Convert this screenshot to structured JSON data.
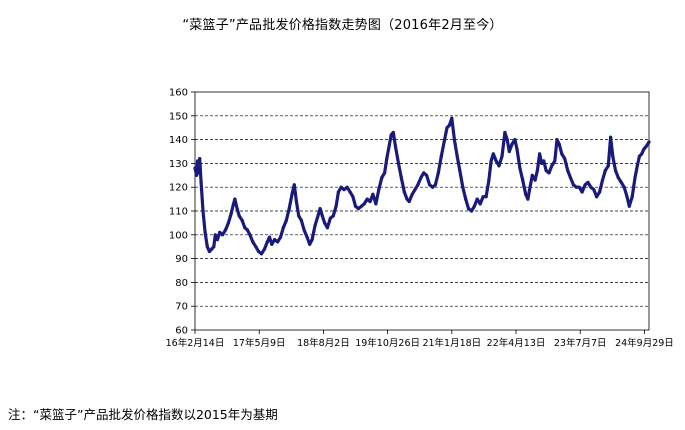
{
  "chart_data": {
    "type": "line",
    "title": "“菜篮子”产品批发价格指数走势图（2016年2月至今）",
    "footnote": "注：“菜篮子”产品批发价格指数以2015年为基期",
    "xlabel": "",
    "ylabel": "",
    "ylim": [
      60,
      160
    ],
    "yticks": [
      "60",
      "70",
      "80",
      "90",
      "100",
      "110",
      "120",
      "130",
      "140",
      "150",
      "160"
    ],
    "xticks": [
      "16年2月14日",
      "17年5月9日",
      "18年8月2日",
      "19年10月26日",
      "21年1月18日",
      "22年4月13日",
      "23年7月7日",
      "24年9月29日"
    ],
    "x_range": [
      "2016-02-14",
      "2024-10-31"
    ],
    "grid": "horizontal dashed",
    "line_color": "#1a1a7a",
    "series": [
      {
        "name": "",
        "points": [
          [
            "2016-02-14",
            128
          ],
          [
            "2016-02-25",
            125
          ],
          [
            "2016-03-03",
            131
          ],
          [
            "2016-03-10",
            126
          ],
          [
            "2016-03-18",
            132
          ],
          [
            "2016-03-28",
            122
          ],
          [
            "2016-04-10",
            110
          ],
          [
            "2016-04-25",
            101
          ],
          [
            "2016-05-10",
            95
          ],
          [
            "2016-05-25",
            93
          ],
          [
            "2016-06-10",
            94
          ],
          [
            "2016-06-25",
            95
          ],
          [
            "2016-07-05",
            100
          ],
          [
            "2016-07-20",
            98
          ],
          [
            "2016-08-05",
            101
          ],
          [
            "2016-08-25",
            100
          ],
          [
            "2016-09-15",
            102
          ],
          [
            "2016-10-05",
            105
          ],
          [
            "2016-10-25",
            109
          ],
          [
            "2016-11-10",
            113
          ],
          [
            "2016-11-20",
            115
          ],
          [
            "2016-12-05",
            111
          ],
          [
            "2016-12-20",
            108
          ],
          [
            "2017-01-10",
            106
          ],
          [
            "2017-01-28",
            103
          ],
          [
            "2017-02-15",
            102
          ],
          [
            "2017-03-05",
            100
          ],
          [
            "2017-03-25",
            97
          ],
          [
            "2017-04-15",
            95
          ],
          [
            "2017-05-05",
            93
          ],
          [
            "2017-05-25",
            92
          ],
          [
            "2017-06-15",
            94
          ],
          [
            "2017-07-05",
            97
          ],
          [
            "2017-07-20",
            99
          ],
          [
            "2017-08-05",
            96
          ],
          [
            "2017-08-25",
            98
          ],
          [
            "2017-09-15",
            97
          ],
          [
            "2017-10-05",
            99
          ],
          [
            "2017-10-25",
            103
          ],
          [
            "2017-11-15",
            106
          ],
          [
            "2017-12-05",
            111
          ],
          [
            "2017-12-25",
            117
          ],
          [
            "2018-01-10",
            121
          ],
          [
            "2018-01-25",
            114
          ],
          [
            "2018-02-10",
            108
          ],
          [
            "2018-03-01",
            106
          ],
          [
            "2018-03-20",
            102
          ],
          [
            "2018-04-10",
            99
          ],
          [
            "2018-04-28",
            96
          ],
          [
            "2018-05-15",
            98
          ],
          [
            "2018-06-05",
            104
          ],
          [
            "2018-06-25",
            108
          ],
          [
            "2018-07-10",
            111
          ],
          [
            "2018-07-25",
            108
          ],
          [
            "2018-08-10",
            105
          ],
          [
            "2018-08-30",
            103
          ],
          [
            "2018-09-20",
            107
          ],
          [
            "2018-10-10",
            108
          ],
          [
            "2018-10-30",
            112
          ],
          [
            "2018-11-15",
            118
          ],
          [
            "2018-12-05",
            120
          ],
          [
            "2018-12-25",
            119
          ],
          [
            "2019-01-15",
            120
          ],
          [
            "2019-02-05",
            118
          ],
          [
            "2019-02-25",
            116
          ],
          [
            "2019-03-15",
            112
          ],
          [
            "2019-04-05",
            111
          ],
          [
            "2019-04-25",
            112
          ],
          [
            "2019-05-15",
            113
          ],
          [
            "2019-06-05",
            115
          ],
          [
            "2019-06-25",
            114
          ],
          [
            "2019-07-15",
            117
          ],
          [
            "2019-08-05",
            113
          ],
          [
            "2019-08-25",
            119
          ],
          [
            "2019-09-15",
            124
          ],
          [
            "2019-10-05",
            126
          ],
          [
            "2019-10-20",
            132
          ],
          [
            "2019-11-05",
            137
          ],
          [
            "2019-11-20",
            142
          ],
          [
            "2019-12-05",
            143
          ],
          [
            "2019-12-20",
            137
          ],
          [
            "2020-01-10",
            130
          ],
          [
            "2020-01-30",
            124
          ],
          [
            "2020-02-20",
            118
          ],
          [
            "2020-03-10",
            115
          ],
          [
            "2020-03-25",
            114
          ],
          [
            "2020-04-15",
            117
          ],
          [
            "2020-05-05",
            119
          ],
          [
            "2020-05-25",
            121
          ],
          [
            "2020-06-15",
            124
          ],
          [
            "2020-07-05",
            126
          ],
          [
            "2020-07-25",
            125
          ],
          [
            "2020-08-15",
            121
          ],
          [
            "2020-09-05",
            120
          ],
          [
            "2020-09-25",
            121
          ],
          [
            "2020-10-15",
            126
          ],
          [
            "2020-11-05",
            133
          ],
          [
            "2020-11-25",
            139
          ],
          [
            "2020-12-15",
            145
          ],
          [
            "2021-01-01",
            146
          ],
          [
            "2021-01-18",
            149
          ],
          [
            "2021-02-05",
            140
          ],
          [
            "2021-02-25",
            133
          ],
          [
            "2021-03-15",
            127
          ],
          [
            "2021-04-05",
            120
          ],
          [
            "2021-04-25",
            115
          ],
          [
            "2021-05-15",
            111
          ],
          [
            "2021-06-05",
            110
          ],
          [
            "2021-06-25",
            112
          ],
          [
            "2021-07-15",
            115
          ],
          [
            "2021-08-05",
            113
          ],
          [
            "2021-08-25",
            116
          ],
          [
            "2021-09-15",
            116
          ],
          [
            "2021-10-05",
            123
          ],
          [
            "2021-10-20",
            131
          ],
          [
            "2021-11-05",
            134
          ],
          [
            "2021-11-25",
            131
          ],
          [
            "2021-12-15",
            129
          ],
          [
            "2022-01-05",
            133
          ],
          [
            "2022-01-25",
            143
          ],
          [
            "2022-02-10",
            140
          ],
          [
            "2022-02-25",
            135
          ],
          [
            "2022-03-15",
            138
          ],
          [
            "2022-04-05",
            140
          ],
          [
            "2022-04-20",
            136
          ],
          [
            "2022-05-10",
            128
          ],
          [
            "2022-05-30",
            123
          ],
          [
            "2022-06-20",
            117
          ],
          [
            "2022-07-05",
            115
          ],
          [
            "2022-07-20",
            120
          ],
          [
            "2022-08-05",
            125
          ],
          [
            "2022-08-25",
            123
          ],
          [
            "2022-09-10",
            127
          ],
          [
            "2022-09-25",
            134
          ],
          [
            "2022-10-10",
            130
          ],
          [
            "2022-10-25",
            131
          ],
          [
            "2022-11-10",
            127
          ],
          [
            "2022-11-30",
            126
          ],
          [
            "2022-12-20",
            129
          ],
          [
            "2023-01-10",
            131
          ],
          [
            "2023-01-25",
            140
          ],
          [
            "2023-02-10",
            138
          ],
          [
            "2023-02-28",
            134
          ],
          [
            "2023-03-20",
            132
          ],
          [
            "2023-04-10",
            127
          ],
          [
            "2023-04-30",
            124
          ],
          [
            "2023-05-20",
            121
          ],
          [
            "2023-06-10",
            120
          ],
          [
            "2023-06-30",
            120
          ],
          [
            "2023-07-20",
            118
          ],
          [
            "2023-08-10",
            121
          ],
          [
            "2023-08-30",
            122
          ],
          [
            "2023-09-20",
            120
          ],
          [
            "2023-10-10",
            119
          ],
          [
            "2023-10-30",
            116
          ],
          [
            "2023-11-20",
            118
          ],
          [
            "2023-12-10",
            123
          ],
          [
            "2023-12-30",
            127
          ],
          [
            "2024-01-20",
            129
          ],
          [
            "2024-02-05",
            141
          ],
          [
            "2024-02-20",
            133
          ],
          [
            "2024-03-10",
            127
          ],
          [
            "2024-03-30",
            124
          ],
          [
            "2024-04-20",
            122
          ],
          [
            "2024-05-10",
            120
          ],
          [
            "2024-05-30",
            116
          ],
          [
            "2024-06-15",
            112
          ],
          [
            "2024-07-05",
            116
          ],
          [
            "2024-07-25",
            124
          ],
          [
            "2024-08-10",
            129
          ],
          [
            "2024-08-25",
            133
          ],
          [
            "2024-09-10",
            134
          ],
          [
            "2024-09-25",
            136
          ],
          [
            "2024-10-10",
            137
          ],
          [
            "2024-10-31",
            139
          ]
        ]
      }
    ]
  }
}
